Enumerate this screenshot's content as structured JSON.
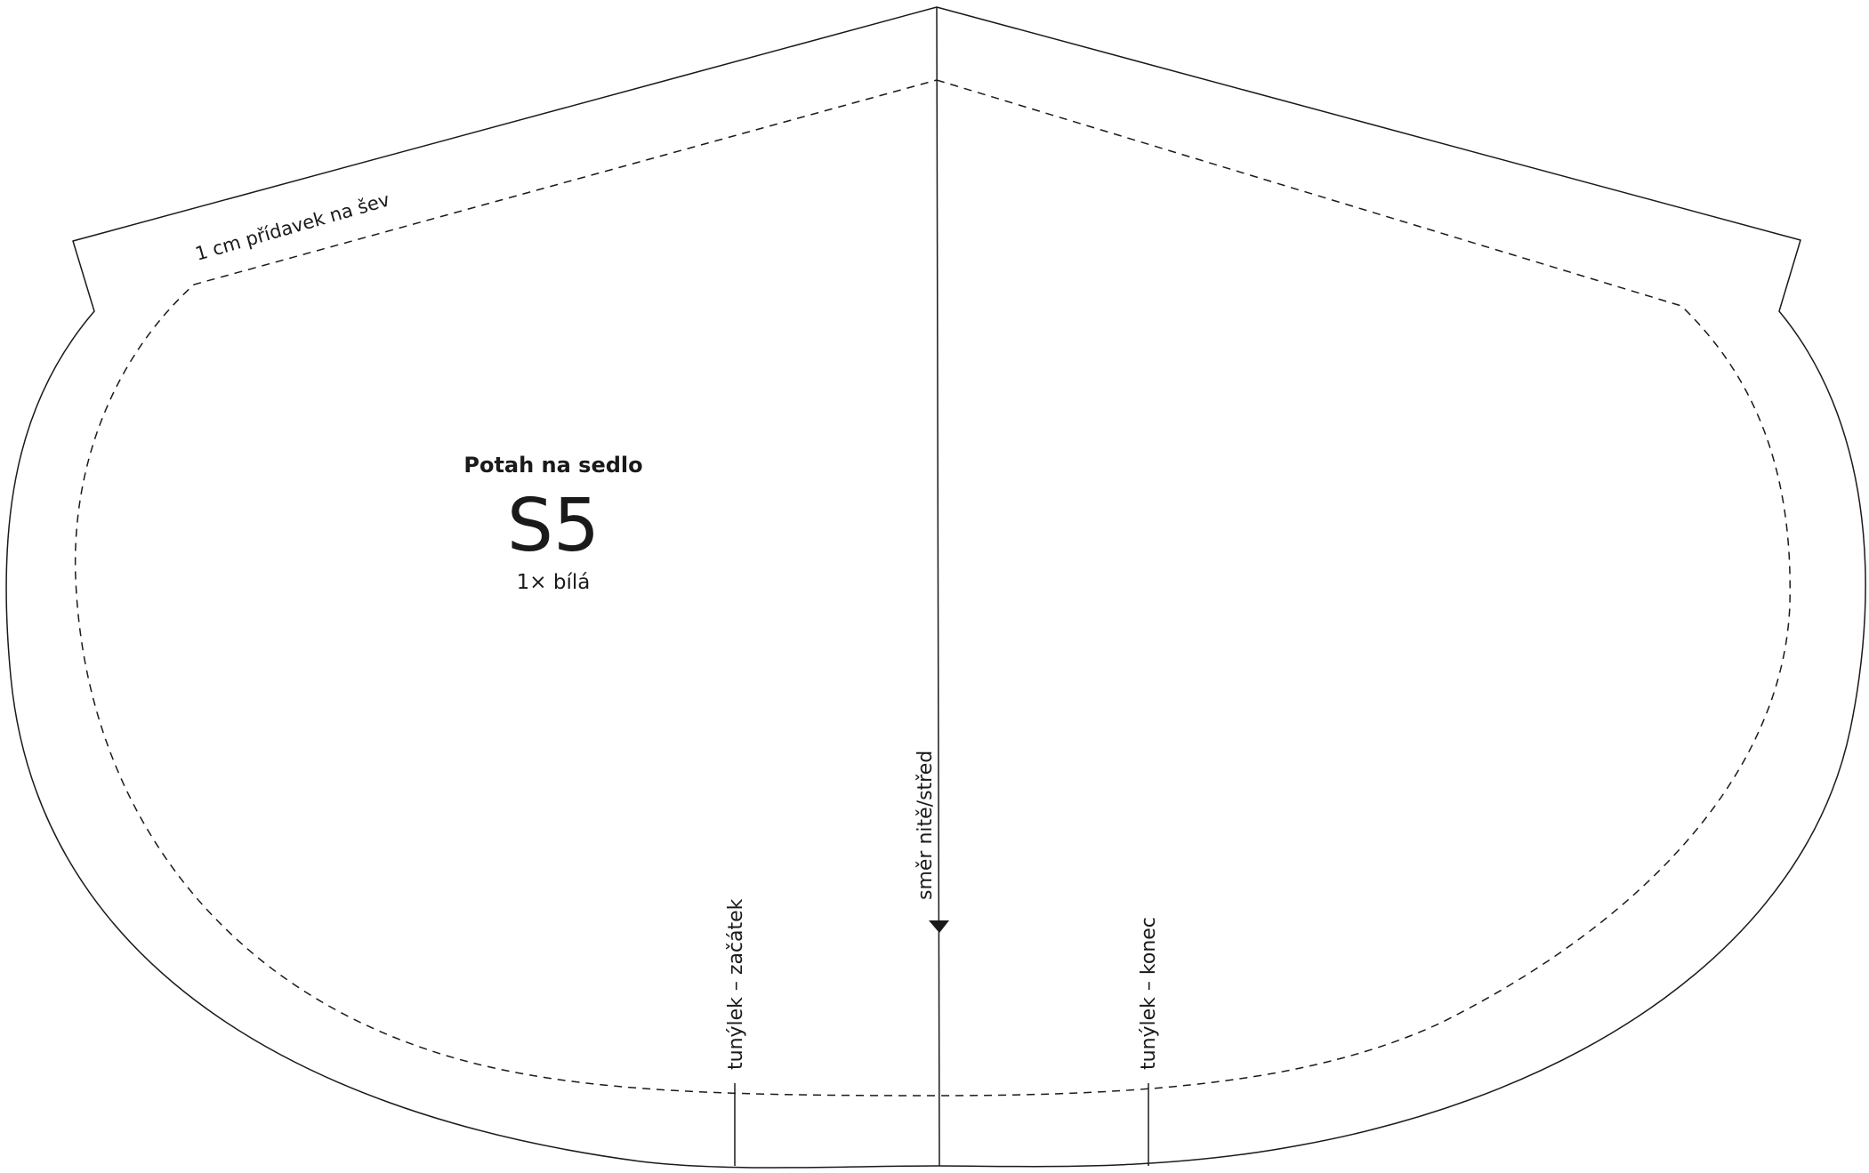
{
  "pattern": {
    "title": "Potah na sedlo",
    "code": "S5",
    "quantity": "1× bílá"
  },
  "labels": {
    "seam_allowance": "1 cm přídavek na šev",
    "grainline": "směr nitě/střed",
    "tunnel_start": "tunýlek – začátek",
    "tunnel_end": "tunýlek – konec"
  },
  "colors": {
    "line": "#1a1a1a",
    "background": "#ffffff"
  }
}
